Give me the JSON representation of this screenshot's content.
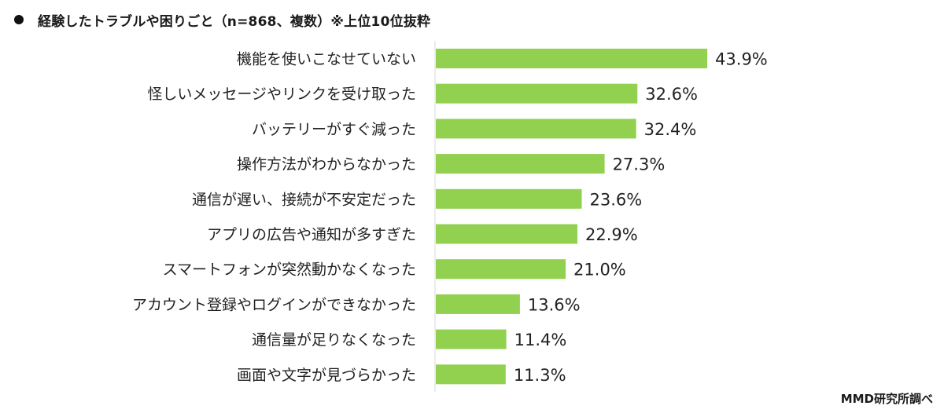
{
  "title": "経験したトラブルや困りごと（n=868、複数）※上位10位抜粋",
  "source": "MMD研究所調べ",
  "colors": {
    "bar": "#92d050",
    "axis": "#d9d9d9"
  },
  "chart_data": {
    "type": "bar",
    "orientation": "horizontal",
    "title": "経験したトラブルや困りごと（n=868、複数）※上位10位抜粋",
    "categories": [
      "機能を使いこなせていない",
      "怪しいメッセージやリンクを受け取った",
      "バッテリーがすぐ減った",
      "操作方法がわからなかった",
      "通信が遅い、接続が不安定だった",
      "アプリの広告や通知が多すぎた",
      "スマートフォンが突然動かなくなった",
      "アカウント登録やログインができなかった",
      "通信量が足りなくなった",
      "画面や文字が見づらかった"
    ],
    "values": [
      43.9,
      32.6,
      32.4,
      27.3,
      23.6,
      22.9,
      21.0,
      13.6,
      11.4,
      11.3
    ],
    "labels": [
      "43.9%",
      "32.6%",
      "32.4%",
      "27.3%",
      "23.6%",
      "22.9%",
      "21.0%",
      "13.6%",
      "11.4%",
      "11.3%"
    ],
    "unit": "%",
    "xlim": [
      0,
      50
    ],
    "grid": false,
    "legend": "none"
  }
}
